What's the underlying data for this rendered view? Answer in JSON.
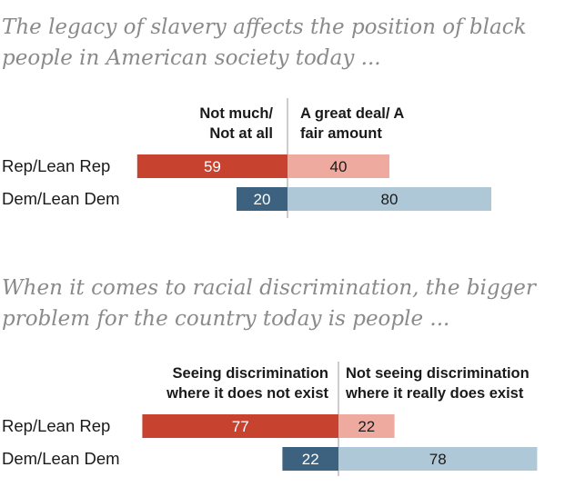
{
  "chart_data": [
    {
      "type": "bar",
      "title": "The legacy of slavery affects the position of black people in American society today ...",
      "series": [
        {
          "name": "Not much/ Not at all",
          "color": "#c8432f",
          "color_alt": "#3c6280"
        },
        {
          "name": "A great deal/ A fair amount",
          "color": "#efaaa0",
          "color_alt": "#aec8d8"
        }
      ],
      "categories": [
        "Rep/Lean Rep",
        "Dem/Lean Dem"
      ],
      "values": [
        [
          59,
          40
        ],
        [
          20,
          80
        ]
      ],
      "label_colors": {
        "dark_bar": "#ffffff",
        "light_bar": "#1a1a1a"
      }
    },
    {
      "type": "bar",
      "title": "When it comes to racial discrimination, the bigger problem for the country today is people ...",
      "series": [
        {
          "name": "Seeing discrimination where it does not exist",
          "color": "#c8432f",
          "color_alt": "#3c6280"
        },
        {
          "name": "Not seeing discrimination where it really does exist",
          "color": "#efaaa0",
          "color_alt": "#aec8d8"
        }
      ],
      "categories": [
        "Rep/Lean Rep",
        "Dem/Lean Dem"
      ],
      "values": [
        [
          77,
          22
        ],
        [
          22,
          78
        ]
      ],
      "label_colors": {
        "dark_bar": "#ffffff",
        "light_bar": "#1a1a1a"
      }
    }
  ]
}
